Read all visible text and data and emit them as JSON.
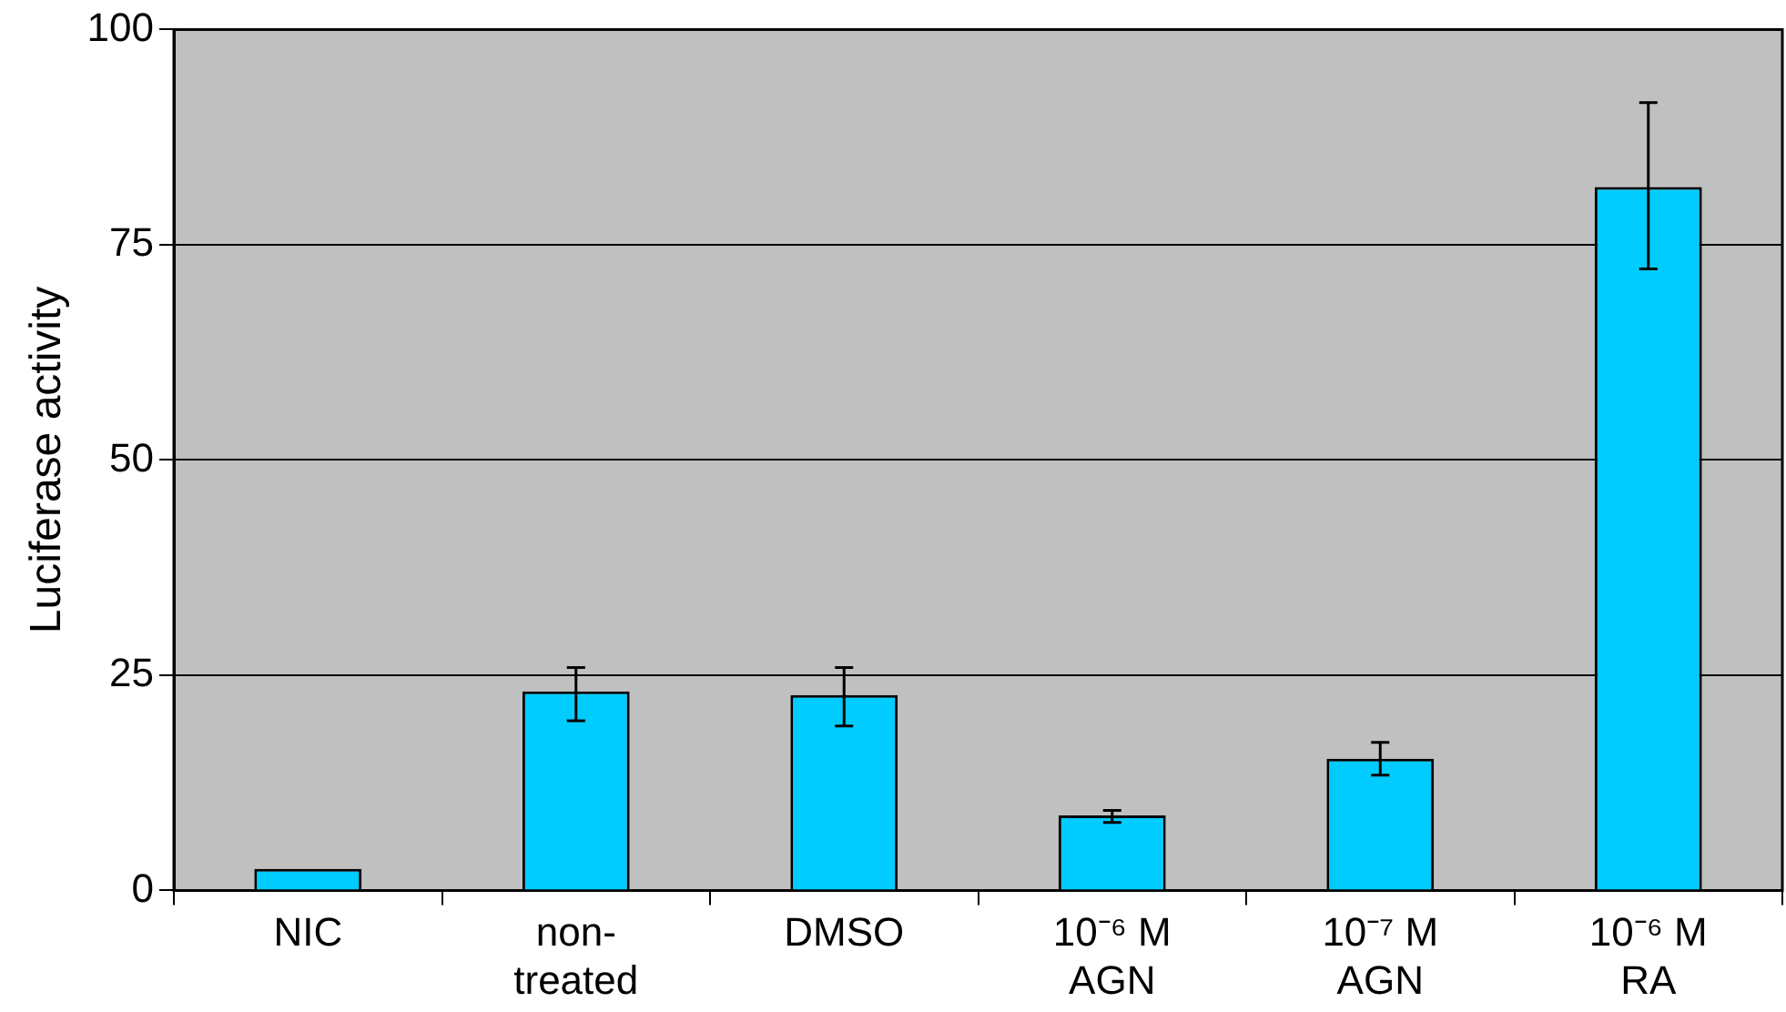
{
  "chart_data": {
    "type": "bar",
    "ylabel": "Luciferase activity",
    "categories": [
      "NIC",
      "non-treated",
      "DMSO",
      "10⁻⁶ M AGN",
      "10⁻⁷ M AGN",
      "10⁻⁶ M RA"
    ],
    "values": [
      2.5,
      23.1,
      22.7,
      8.7,
      15.3,
      81.7
    ],
    "errors": [
      null,
      [
        19.7,
        25.9
      ],
      [
        19.1,
        25.9
      ],
      [
        7.9,
        9.3
      ],
      [
        13.4,
        17.2
      ],
      [
        72.2,
        91.5
      ]
    ],
    "color": "#00ccff",
    "ylim": [
      0,
      100
    ],
    "yticks": [
      0,
      25,
      50,
      75,
      100
    ],
    "grid": "y"
  }
}
